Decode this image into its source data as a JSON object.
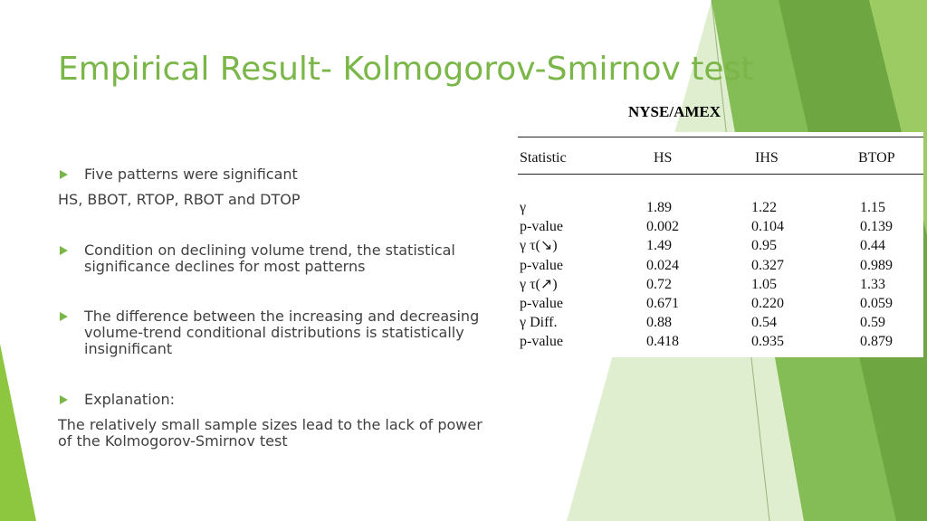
{
  "title": "Empirical Result- Kolmogorov-Smirnov test",
  "exchange": "NYSE/AMEX",
  "bullets": [
    {
      "text": "Five patterns were significant",
      "subtext": "HS, BBOT, RTOP, RBOT and DTOP"
    },
    {
      "text": "Condition on declining volume trend, the statistical significance declines for most patterns"
    },
    {
      "text": "The difference between the increasing and decreasing volume-trend conditional distributions is statistically insignificant"
    },
    {
      "text": "Explanation:",
      "subtext": "The relatively small sample sizes lead to the lack of power of the Kolmogorov-Smirnov test"
    }
  ],
  "table": {
    "headers": [
      "Statistic",
      "HS",
      "IHS",
      "BTOP"
    ],
    "rows": [
      [
        "γ",
        "1.89",
        "1.22",
        "1.15"
      ],
      [
        "p-value",
        "0.002",
        "0.104",
        "0.139"
      ],
      [
        "γ τ(↘)",
        "1.49",
        "0.95",
        "0.44"
      ],
      [
        "p-value",
        "0.024",
        "0.327",
        "0.989"
      ],
      [
        "γ τ(↗)",
        "0.72",
        "1.05",
        "1.33"
      ],
      [
        "p-value",
        "0.671",
        "0.220",
        "0.059"
      ],
      [
        "γ Diff.",
        "0.88",
        "0.54",
        "0.59"
      ],
      [
        "p-value",
        "0.418",
        "0.935",
        "0.879"
      ]
    ]
  },
  "colors": {
    "accent": "#7ab648",
    "body_text": "#404040"
  }
}
